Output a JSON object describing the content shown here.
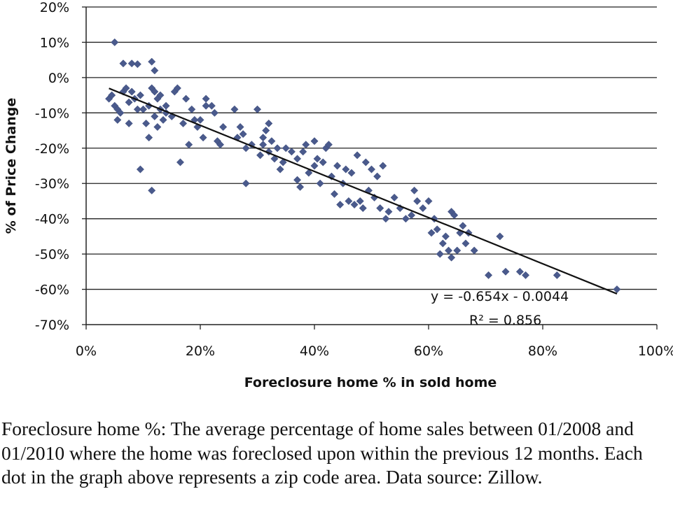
{
  "chart_data": {
    "type": "scatter",
    "title": "",
    "xlabel": "Foreclosure home % in sold home",
    "ylabel": "% of Price Change",
    "xlim": [
      0,
      100
    ],
    "ylim": [
      -70,
      20
    ],
    "x_ticks": [
      0,
      20,
      40,
      60,
      80,
      100
    ],
    "x_tick_labels": [
      "0%",
      "20%",
      "40%",
      "60%",
      "80%",
      "100%"
    ],
    "y_ticks": [
      20,
      10,
      0,
      -10,
      -20,
      -30,
      -40,
      -50,
      -60,
      -70
    ],
    "y_tick_labels": [
      "20%",
      "10%",
      "0%",
      "-10%",
      "-20%",
      "-30%",
      "-40%",
      "-50%",
      "-60%",
      "-70%"
    ],
    "grid": "horizontal",
    "marker_color": "#4a5a8c",
    "trendline": {
      "slope": -0.654,
      "intercept": -0.0044,
      "x_range": [
        4,
        93
      ],
      "color": "#111111",
      "equation_label": "y = -0.654x - 0.0044",
      "r2_label": "R² = 0.856"
    },
    "series": [
      {
        "name": "Zip code areas",
        "points": [
          [
            5,
            10
          ],
          [
            6.5,
            4
          ],
          [
            8,
            4
          ],
          [
            9,
            3.8
          ],
          [
            11.5,
            4.5
          ],
          [
            12,
            2
          ],
          [
            4,
            -6
          ],
          [
            4.5,
            -5
          ],
          [
            5,
            -8
          ],
          [
            5.5,
            -12
          ],
          [
            5.5,
            -9
          ],
          [
            6,
            -10
          ],
          [
            6.5,
            -4
          ],
          [
            7,
            -3
          ],
          [
            7.5,
            -7
          ],
          [
            7.5,
            -13
          ],
          [
            8,
            -4
          ],
          [
            8.5,
            -6
          ],
          [
            9,
            -9
          ],
          [
            9.5,
            -5
          ],
          [
            9.5,
            -26
          ],
          [
            10,
            -9
          ],
          [
            10.5,
            -13
          ],
          [
            11,
            -17
          ],
          [
            11,
            -8
          ],
          [
            11.5,
            -3
          ],
          [
            11.5,
            -32
          ],
          [
            12,
            -4
          ],
          [
            12,
            -11
          ],
          [
            12.5,
            -6
          ],
          [
            12.5,
            -14
          ],
          [
            13,
            -5
          ],
          [
            13,
            -9
          ],
          [
            13.5,
            -12
          ],
          [
            14,
            -8
          ],
          [
            14,
            -10
          ],
          [
            15,
            -11
          ],
          [
            15.5,
            -4
          ],
          [
            16,
            -3
          ],
          [
            16.5,
            -24
          ],
          [
            17,
            -13
          ],
          [
            17.5,
            -6
          ],
          [
            18,
            -19
          ],
          [
            18.5,
            -9
          ],
          [
            19,
            -12
          ],
          [
            19.5,
            -14
          ],
          [
            20,
            -12
          ],
          [
            20.5,
            -17
          ],
          [
            21,
            -8
          ],
          [
            21,
            -6
          ],
          [
            22,
            -8
          ],
          [
            22.5,
            -10
          ],
          [
            23,
            -18
          ],
          [
            23.5,
            -19
          ],
          [
            24,
            -14
          ],
          [
            26,
            -9
          ],
          [
            26.5,
            -17
          ],
          [
            27,
            -14
          ],
          [
            27.5,
            -16
          ],
          [
            28,
            -30
          ],
          [
            28,
            -20
          ],
          [
            29,
            -19
          ],
          [
            30,
            -9
          ],
          [
            30.5,
            -22
          ],
          [
            31,
            -17
          ],
          [
            31,
            -19
          ],
          [
            31.5,
            -15
          ],
          [
            32,
            -13
          ],
          [
            32,
            -21
          ],
          [
            32.5,
            -18
          ],
          [
            33,
            -23
          ],
          [
            33.5,
            -20
          ],
          [
            34,
            -26
          ],
          [
            34.5,
            -24
          ],
          [
            35,
            -20
          ],
          [
            36,
            -21
          ],
          [
            37,
            -23
          ],
          [
            37,
            -29
          ],
          [
            37.5,
            -31
          ],
          [
            38,
            -21
          ],
          [
            38.5,
            -19
          ],
          [
            39,
            -27
          ],
          [
            40,
            -18
          ],
          [
            40,
            -25
          ],
          [
            40.5,
            -23
          ],
          [
            41,
            -30
          ],
          [
            41.5,
            -24
          ],
          [
            42,
            -20
          ],
          [
            42.5,
            -19
          ],
          [
            43,
            -28
          ],
          [
            43.5,
            -33
          ],
          [
            44,
            -25
          ],
          [
            44.5,
            -36
          ],
          [
            45,
            -30
          ],
          [
            45.5,
            -26
          ],
          [
            46,
            -35
          ],
          [
            46.5,
            -27
          ],
          [
            47,
            -36
          ],
          [
            47.5,
            -22
          ],
          [
            48,
            -35
          ],
          [
            48.5,
            -37
          ],
          [
            49,
            -24
          ],
          [
            49.5,
            -32
          ],
          [
            50,
            -26
          ],
          [
            50.5,
            -34
          ],
          [
            51,
            -28
          ],
          [
            51.5,
            -37
          ],
          [
            52,
            -25
          ],
          [
            52.5,
            -40
          ],
          [
            53,
            -38
          ],
          [
            54,
            -34
          ],
          [
            55,
            -37
          ],
          [
            56,
            -40
          ],
          [
            57,
            -39
          ],
          [
            57.5,
            -32
          ],
          [
            58,
            -35
          ],
          [
            59,
            -37
          ],
          [
            60,
            -35
          ],
          [
            60.5,
            -44
          ],
          [
            61,
            -40
          ],
          [
            61.5,
            -43
          ],
          [
            62,
            -50
          ],
          [
            62.5,
            -47
          ],
          [
            63,
            -45
          ],
          [
            63.5,
            -49
          ],
          [
            64,
            -51
          ],
          [
            64,
            -38
          ],
          [
            64.5,
            -39
          ],
          [
            65,
            -49
          ],
          [
            65.5,
            -44
          ],
          [
            66,
            -42
          ],
          [
            66.5,
            -47
          ],
          [
            67,
            -44
          ],
          [
            68,
            -49
          ],
          [
            70.5,
            -56
          ],
          [
            72.5,
            -45
          ],
          [
            73.5,
            -55
          ],
          [
            76,
            -55
          ],
          [
            77,
            -56
          ],
          [
            82.5,
            -56
          ],
          [
            93,
            -60
          ]
        ]
      }
    ]
  },
  "caption": "Foreclosure home %: The average percentage of home sales between 01/2008 and 01/2010 where the home was foreclosed upon within the previous 12 months. Each dot in the graph above represents a zip code area. Data source: Zillow."
}
